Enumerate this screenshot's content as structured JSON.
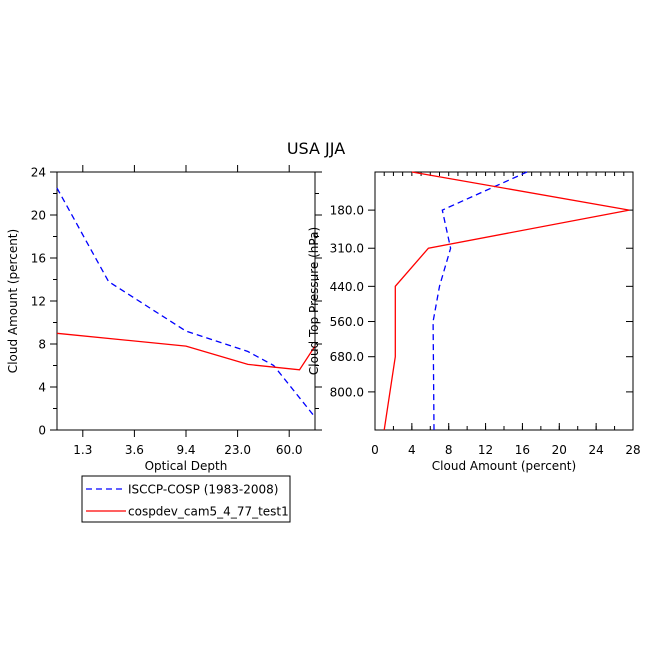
{
  "title": "USA JJA",
  "chart_data": [
    {
      "type": "line",
      "xlabel": "Optical Depth",
      "ylabel": "Cloud Amount (percent)",
      "x_ticks": [
        "1.3",
        "3.6",
        "9.4",
        "23.0",
        "60.0"
      ],
      "ylim": [
        0,
        24
      ],
      "y_ticks": [
        "0",
        "4",
        "8",
        "12",
        "16",
        "20",
        "24"
      ],
      "x_bin_positions": [
        0.5,
        1.5,
        2.5,
        3.5,
        4.5,
        5.5
      ],
      "series": [
        {
          "name": "ISCCP-COSP (1983-2008)",
          "color": "#0000ff",
          "dash": true,
          "x": [
            0,
            1,
            2.5,
            3.7,
            4.2,
            5
          ],
          "y": [
            22.5,
            13.8,
            9.2,
            7.3,
            6.0,
            1.2
          ]
        },
        {
          "name": "cospdev_cam5_4_77_test1",
          "color": "#ff0000",
          "dash": false,
          "x": [
            0,
            2.5,
            3.7,
            4.7,
            5
          ],
          "y": [
            9.0,
            7.8,
            6.1,
            5.6,
            7.8
          ]
        }
      ]
    },
    {
      "type": "line",
      "xlabel": "Cloud Amount (percent)",
      "ylabel": "Cloud Top Pressure (hPa)",
      "xlim": [
        0,
        28
      ],
      "x_ticks": [
        "0",
        "4",
        "8",
        "12",
        "16",
        "20",
        "24",
        "28"
      ],
      "y_ticks": [
        "180.0",
        "310.0",
        "440.0",
        "560.0",
        "680.0",
        "800.0"
      ],
      "y_tick_values": [
        180,
        310,
        440,
        560,
        680,
        800
      ],
      "ylim": [
        50,
        930
      ],
      "series": [
        {
          "name": "ISCCP-COSP (1983-2008)",
          "color": "#0000ff",
          "dash": true,
          "x": [
            16.5,
            7.3,
            8.2,
            7.0,
            6.3,
            6.4
          ],
          "y": [
            50,
            180,
            310,
            440,
            560,
            930
          ]
        },
        {
          "name": "cospdev_cam5_4_77_test1",
          "color": "#ff0000",
          "dash": false,
          "x": [
            4.0,
            27.6,
            5.8,
            2.2,
            2.2,
            1.0
          ],
          "y": [
            50,
            180,
            310,
            440,
            680,
            930
          ]
        }
      ]
    }
  ],
  "legend": [
    {
      "label": "ISCCP-COSP (1983-2008)",
      "color": "#0000ff",
      "dash": true
    },
    {
      "label": "cospdev_cam5_4_77_test1",
      "color": "#ff0000",
      "dash": false
    }
  ]
}
